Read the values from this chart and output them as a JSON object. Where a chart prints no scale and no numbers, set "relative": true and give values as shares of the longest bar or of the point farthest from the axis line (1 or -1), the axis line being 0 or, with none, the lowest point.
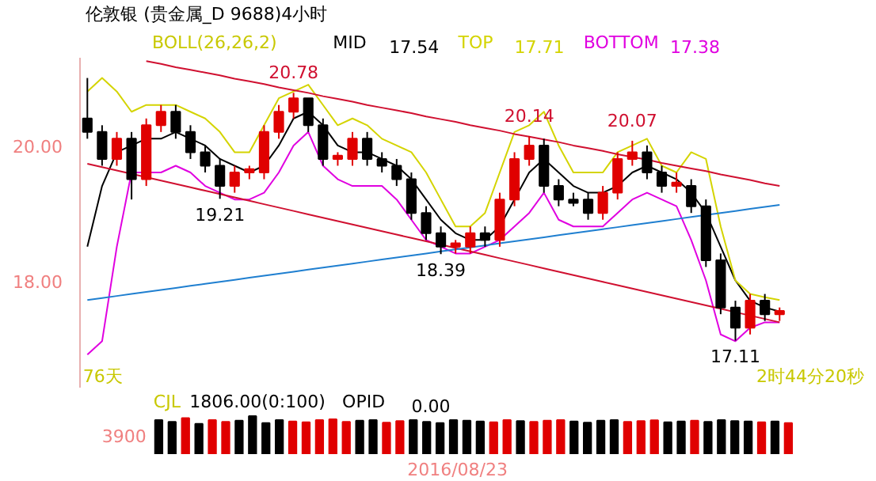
{
  "chart_data": [
    {
      "type": "candlestick",
      "title": "伦敦银 (贵金属_D 9688)4小时",
      "legend_title": "BOLL(26,26,2)",
      "tick_labels": "y",
      "grid": false,
      "ylim": [
        16.4,
        21.3
      ],
      "categories": [
        null,
        null,
        null,
        null,
        null,
        null,
        null,
        null,
        null,
        null,
        null,
        null,
        null,
        null,
        null,
        null,
        null,
        null,
        null,
        null,
        null,
        null,
        null,
        null,
        null,
        null,
        null,
        null,
        null,
        null,
        null,
        null,
        null,
        null,
        null,
        null,
        null,
        null,
        null,
        null,
        null,
        null,
        null,
        null,
        null,
        null,
        null,
        null
      ],
      "yticks": [
        {
          "value": 20,
          "label": "20.00"
        },
        {
          "value": 18,
          "label": "18.00"
        }
      ],
      "ohlc": [
        [
          20.4,
          21.0,
          20.1,
          20.2
        ],
        [
          20.2,
          20.3,
          19.7,
          19.8
        ],
        [
          19.8,
          20.2,
          19.7,
          20.1
        ],
        [
          20.1,
          20.2,
          19.2,
          19.5
        ],
        [
          19.5,
          20.4,
          19.4,
          20.3
        ],
        [
          20.3,
          20.6,
          20.2,
          20.5
        ],
        [
          20.5,
          20.6,
          20.1,
          20.2
        ],
        [
          20.2,
          20.3,
          19.8,
          19.9
        ],
        [
          19.9,
          20.0,
          19.6,
          19.7
        ],
        [
          19.7,
          19.8,
          19.21,
          19.4
        ],
        [
          19.4,
          19.7,
          19.3,
          19.6
        ],
        [
          19.6,
          19.7,
          19.5,
          19.65
        ],
        [
          19.6,
          20.3,
          19.5,
          20.2
        ],
        [
          20.2,
          20.6,
          20.1,
          20.5
        ],
        [
          20.5,
          20.78,
          20.4,
          20.7
        ],
        [
          20.7,
          20.7,
          20.2,
          20.3
        ],
        [
          20.3,
          20.4,
          19.7,
          19.8
        ],
        [
          19.8,
          19.9,
          19.7,
          19.85
        ],
        [
          19.8,
          20.2,
          19.7,
          20.1
        ],
        [
          20.1,
          20.2,
          19.7,
          19.8
        ],
        [
          19.8,
          19.9,
          19.6,
          19.7
        ],
        [
          19.7,
          19.8,
          19.4,
          19.5
        ],
        [
          19.5,
          19.6,
          18.9,
          19.0
        ],
        [
          19.0,
          19.1,
          18.6,
          18.7
        ],
        [
          18.7,
          18.8,
          18.39,
          18.5
        ],
        [
          18.5,
          18.6,
          18.4,
          18.55
        ],
        [
          18.5,
          18.8,
          18.4,
          18.7
        ],
        [
          18.7,
          18.8,
          18.5,
          18.6
        ],
        [
          18.6,
          19.3,
          18.5,
          19.2
        ],
        [
          19.2,
          19.9,
          19.1,
          19.8
        ],
        [
          19.8,
          20.14,
          19.7,
          20.0
        ],
        [
          20.0,
          20.1,
          19.3,
          19.4
        ],
        [
          19.4,
          19.5,
          19.1,
          19.2
        ],
        [
          19.2,
          19.3,
          19.1,
          19.15
        ],
        [
          19.2,
          19.3,
          18.9,
          19.0
        ],
        [
          19.0,
          19.4,
          18.9,
          19.3
        ],
        [
          19.3,
          19.9,
          19.2,
          19.8
        ],
        [
          19.8,
          20.07,
          19.7,
          19.9
        ],
        [
          19.9,
          20.0,
          19.5,
          19.6
        ],
        [
          19.6,
          19.7,
          19.3,
          19.4
        ],
        [
          19.4,
          19.6,
          19.3,
          19.45
        ],
        [
          19.4,
          19.5,
          19.0,
          19.1
        ],
        [
          19.1,
          19.2,
          18.2,
          18.3
        ],
        [
          18.3,
          18.4,
          17.5,
          17.6
        ],
        [
          17.6,
          17.7,
          17.11,
          17.3
        ],
        [
          17.3,
          17.8,
          17.2,
          17.7
        ],
        [
          17.7,
          17.8,
          17.4,
          17.5
        ],
        [
          17.5,
          17.6,
          17.4,
          17.55
        ]
      ],
      "colors": [
        "#000000",
        "#000000",
        "#e00000",
        "#000000",
        "#e00000",
        "#e00000",
        "#000000",
        "#000000",
        "#000000",
        "#000000",
        "#e00000",
        "#e00000",
        "#e00000",
        "#e00000",
        "#e00000",
        "#000000",
        "#000000",
        "#e00000",
        "#e00000",
        "#000000",
        "#000000",
        "#000000",
        "#000000",
        "#000000",
        "#000000",
        "#e00000",
        "#e00000",
        "#000000",
        "#e00000",
        "#e00000",
        "#e00000",
        "#000000",
        "#000000",
        "#000000",
        "#000000",
        "#e00000",
        "#e00000",
        "#e00000",
        "#000000",
        "#000000",
        "#e00000",
        "#000000",
        "#000000",
        "#000000",
        "#000000",
        "#e00000",
        "#000000",
        "#e00000"
      ],
      "series": [
        {
          "name": "MID",
          "type": "line",
          "color": "#000000",
          "values": [
            18.5,
            19.4,
            19.9,
            20.0,
            20.1,
            20.1,
            20.2,
            20.1,
            20.0,
            19.8,
            19.7,
            19.6,
            19.7,
            20.0,
            20.4,
            20.5,
            20.3,
            20.0,
            19.9,
            19.9,
            19.8,
            19.7,
            19.5,
            19.2,
            18.9,
            18.7,
            18.6,
            18.6,
            18.8,
            19.2,
            19.6,
            19.8,
            19.6,
            19.4,
            19.3,
            19.3,
            19.4,
            19.6,
            19.7,
            19.6,
            19.5,
            19.3,
            19.0,
            18.5,
            18.0,
            17.7,
            17.6,
            17.54
          ]
        },
        {
          "name": "TOP",
          "type": "line",
          "color": "#d4d400",
          "values": [
            20.8,
            21.0,
            20.8,
            20.5,
            20.6,
            20.6,
            20.6,
            20.5,
            20.4,
            20.2,
            19.9,
            19.9,
            20.3,
            20.7,
            20.8,
            20.9,
            20.6,
            20.3,
            20.4,
            20.3,
            20.1,
            20.0,
            19.9,
            19.6,
            19.2,
            18.8,
            18.8,
            19.0,
            19.6,
            20.2,
            20.3,
            20.5,
            20.0,
            19.6,
            19.6,
            19.6,
            19.9,
            20.0,
            20.1,
            19.7,
            19.6,
            19.9,
            19.8,
            18.8,
            18.0,
            17.8,
            17.75,
            17.71
          ]
        },
        {
          "name": "BOTTOM",
          "type": "line",
          "color": "#e000e0",
          "values": [
            16.9,
            17.1,
            18.5,
            19.6,
            19.6,
            19.6,
            19.7,
            19.6,
            19.4,
            19.3,
            19.2,
            19.2,
            19.3,
            19.6,
            20.0,
            20.2,
            19.7,
            19.5,
            19.4,
            19.4,
            19.4,
            19.2,
            18.9,
            18.6,
            18.5,
            18.4,
            18.4,
            18.5,
            18.6,
            18.8,
            19.0,
            19.3,
            18.9,
            18.8,
            18.8,
            18.8,
            19.0,
            19.2,
            19.3,
            19.2,
            19.1,
            18.6,
            18.0,
            17.2,
            17.1,
            17.3,
            17.38,
            17.38
          ]
        },
        {
          "type": "line",
          "color": "#d01030",
          "values": [
            null,
            null,
            null,
            null,
            21.25,
            21.21,
            21.16,
            21.12,
            21.08,
            21.04,
            20.99,
            20.95,
            20.91,
            20.86,
            20.82,
            20.78,
            20.73,
            20.69,
            20.65,
            20.6,
            20.56,
            20.52,
            20.48,
            20.43,
            20.39,
            20.35,
            20.3,
            20.26,
            20.22,
            20.17,
            20.13,
            20.09,
            20.05,
            20.0,
            19.96,
            19.92,
            19.87,
            19.83,
            19.79,
            19.74,
            19.7,
            19.66,
            19.62,
            19.57,
            19.53,
            19.49,
            19.44,
            19.4
          ]
        },
        {
          "type": "line",
          "color": "#d01030",
          "values": [
            19.73,
            19.68,
            19.63,
            19.58,
            19.53,
            19.48,
            19.43,
            19.38,
            19.33,
            19.28,
            19.23,
            19.18,
            19.13,
            19.08,
            19.03,
            18.98,
            18.93,
            18.88,
            18.83,
            18.78,
            18.73,
            18.68,
            18.63,
            18.58,
            18.53,
            18.48,
            18.43,
            18.38,
            18.33,
            18.28,
            18.23,
            18.18,
            18.13,
            18.08,
            18.03,
            17.98,
            17.93,
            17.88,
            17.83,
            17.78,
            17.73,
            17.68,
            17.63,
            17.58,
            17.53,
            17.48,
            17.43,
            17.38
          ]
        },
        {
          "type": "line",
          "color": "#1f7fd0",
          "values": [
            17.71,
            17.74,
            17.77,
            17.8,
            17.83,
            17.86,
            17.89,
            17.92,
            17.95,
            17.98,
            18.01,
            18.04,
            18.07,
            18.1,
            18.13,
            18.16,
            18.19,
            18.22,
            18.25,
            18.28,
            18.31,
            18.34,
            18.37,
            18.4,
            18.43,
            18.46,
            18.49,
            18.52,
            18.55,
            18.58,
            18.61,
            18.64,
            18.67,
            18.7,
            18.73,
            18.76,
            18.79,
            18.82,
            18.85,
            18.88,
            18.91,
            18.94,
            18.97,
            19.0,
            19.03,
            19.06,
            19.09,
            19.12
          ]
        }
      ],
      "annotations": [
        {
          "text": "20.78",
          "y": 20.78
        },
        {
          "text": "19.21",
          "y": 19.21
        },
        {
          "text": "18.39",
          "y": 18.39
        },
        {
          "text": "20.14",
          "y": 20.14
        },
        {
          "text": "20.07",
          "y": 20.07
        },
        {
          "text": "17.11",
          "y": 17.11
        },
        "76天",
        "2时44分20秒",
        "17.54",
        "17.71",
        "17.38"
      ]
    },
    {
      "type": "bar",
      "relative": true,
      "tick_labels": false,
      "grid": false,
      "categories": [
        null,
        null,
        null,
        null,
        null,
        null,
        null,
        null,
        null,
        null,
        null,
        null,
        null,
        null,
        null,
        null,
        null,
        null,
        null,
        null,
        null,
        null,
        null,
        null,
        null,
        null,
        null,
        null,
        null,
        null,
        null,
        null,
        null,
        null,
        null,
        null,
        null,
        null,
        null,
        null,
        null,
        null,
        null,
        null,
        null,
        null,
        null,
        null
      ],
      "values": [
        0.9,
        0.85,
        0.95,
        0.8,
        0.9,
        0.85,
        0.88,
        1.0,
        0.82,
        0.9,
        0.86,
        0.84,
        0.9,
        0.92,
        0.85,
        0.88,
        0.9,
        0.83,
        0.87,
        0.9,
        0.85,
        0.82,
        0.9,
        0.88,
        0.86,
        0.84,
        0.9,
        0.87,
        0.85,
        0.88,
        0.9,
        0.86,
        0.83,
        0.88,
        0.9,
        0.85,
        0.87,
        0.89,
        0.84,
        0.86,
        0.88,
        0.85,
        0.9,
        0.87,
        0.86,
        0.84,
        0.86,
        0.82
      ],
      "colors": [
        "#000000",
        "#000000",
        "#e00000",
        "#000000",
        "#e00000",
        "#e00000",
        "#000000",
        "#000000",
        "#000000",
        "#000000",
        "#e00000",
        "#e00000",
        "#e00000",
        "#e00000",
        "#e00000",
        "#000000",
        "#000000",
        "#e00000",
        "#e00000",
        "#000000",
        "#000000",
        "#000000",
        "#000000",
        "#000000",
        "#000000",
        "#e00000",
        "#e00000",
        "#000000",
        "#e00000",
        "#e00000",
        "#e00000",
        "#000000",
        "#000000",
        "#000000",
        "#000000",
        "#e00000",
        "#e00000",
        "#e00000",
        "#000000",
        "#000000",
        "#e00000",
        "#000000",
        "#000000",
        "#000000",
        "#000000",
        "#e00000",
        "#000000",
        "#e00000"
      ],
      "annotations": [
        "CJL",
        "1806.00(0:100)",
        "OPID",
        "0.00",
        "3900",
        "2016/08/23"
      ]
    }
  ]
}
